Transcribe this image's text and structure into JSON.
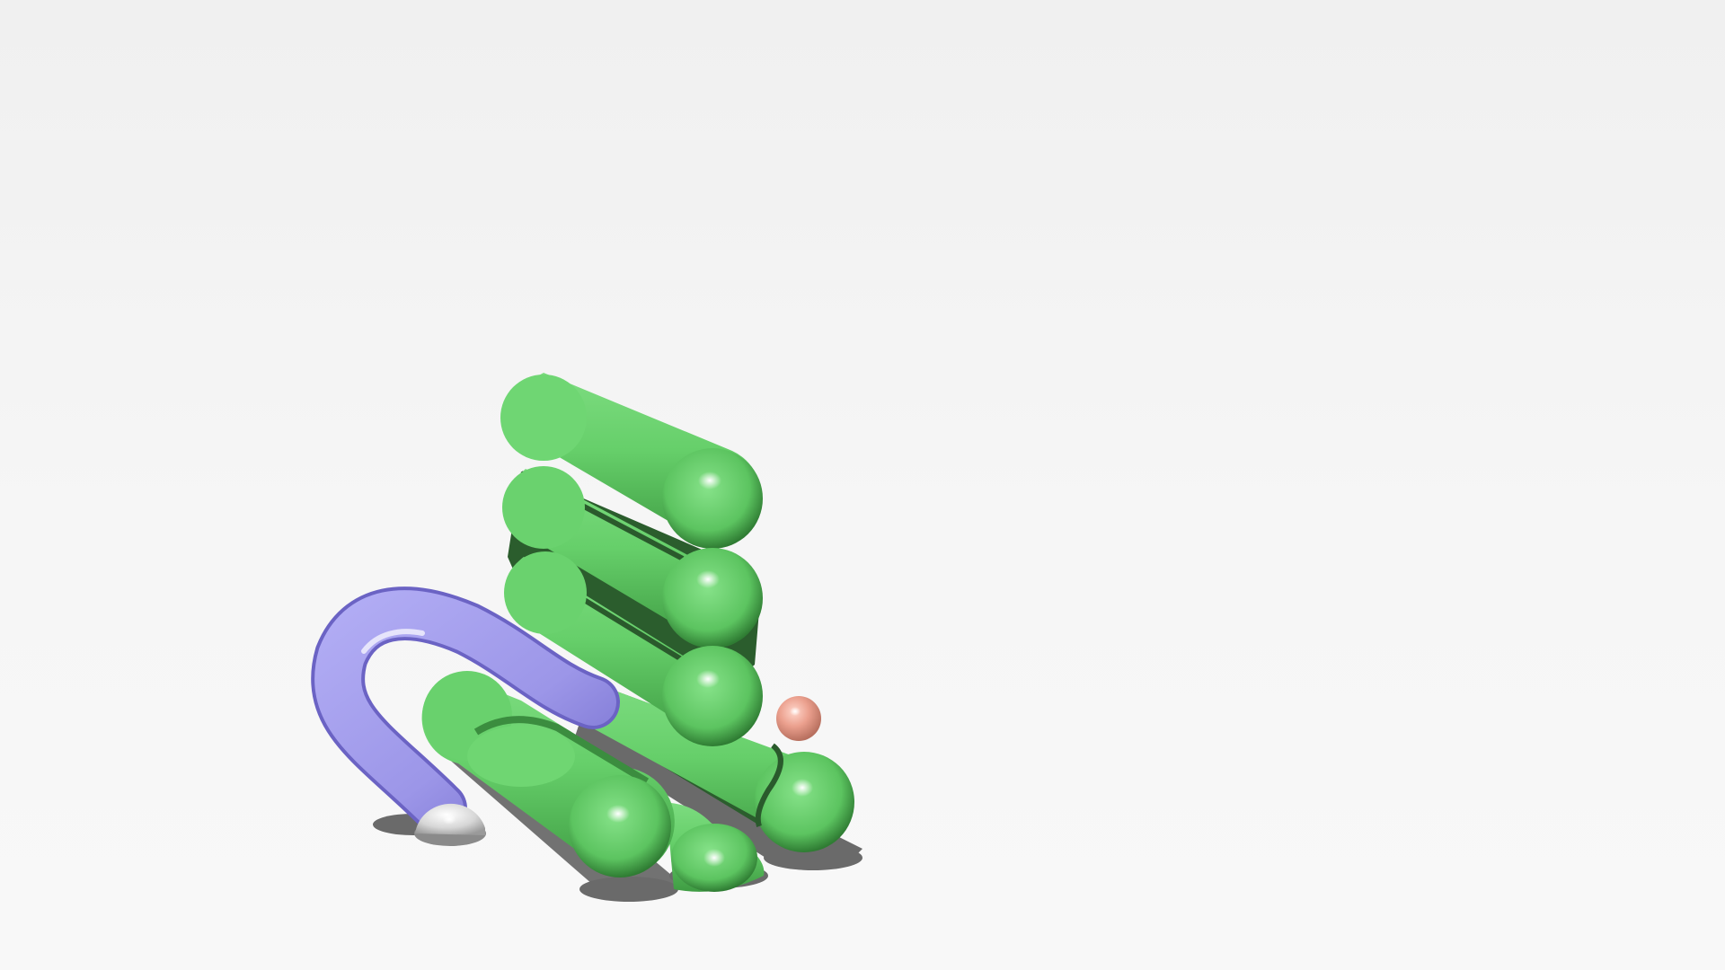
{
  "scene": {
    "description_type": "3d-rendered-molecular-cartoon",
    "background_color": "#f4f4f4",
    "colors": {
      "helix": "#6ad26e",
      "helix_dark": "#2a5a2c",
      "helix_mid": "#4fb453",
      "loop": "#9d97ea",
      "loop_dark": "#6b63c4",
      "cap": "#d8d8d8",
      "ball": "#e59a88",
      "shadow": "#6a6a6a"
    },
    "objects": {
      "helix_count": 6,
      "loop_count": 1,
      "ball_count": 1,
      "cap_count": 1
    }
  }
}
